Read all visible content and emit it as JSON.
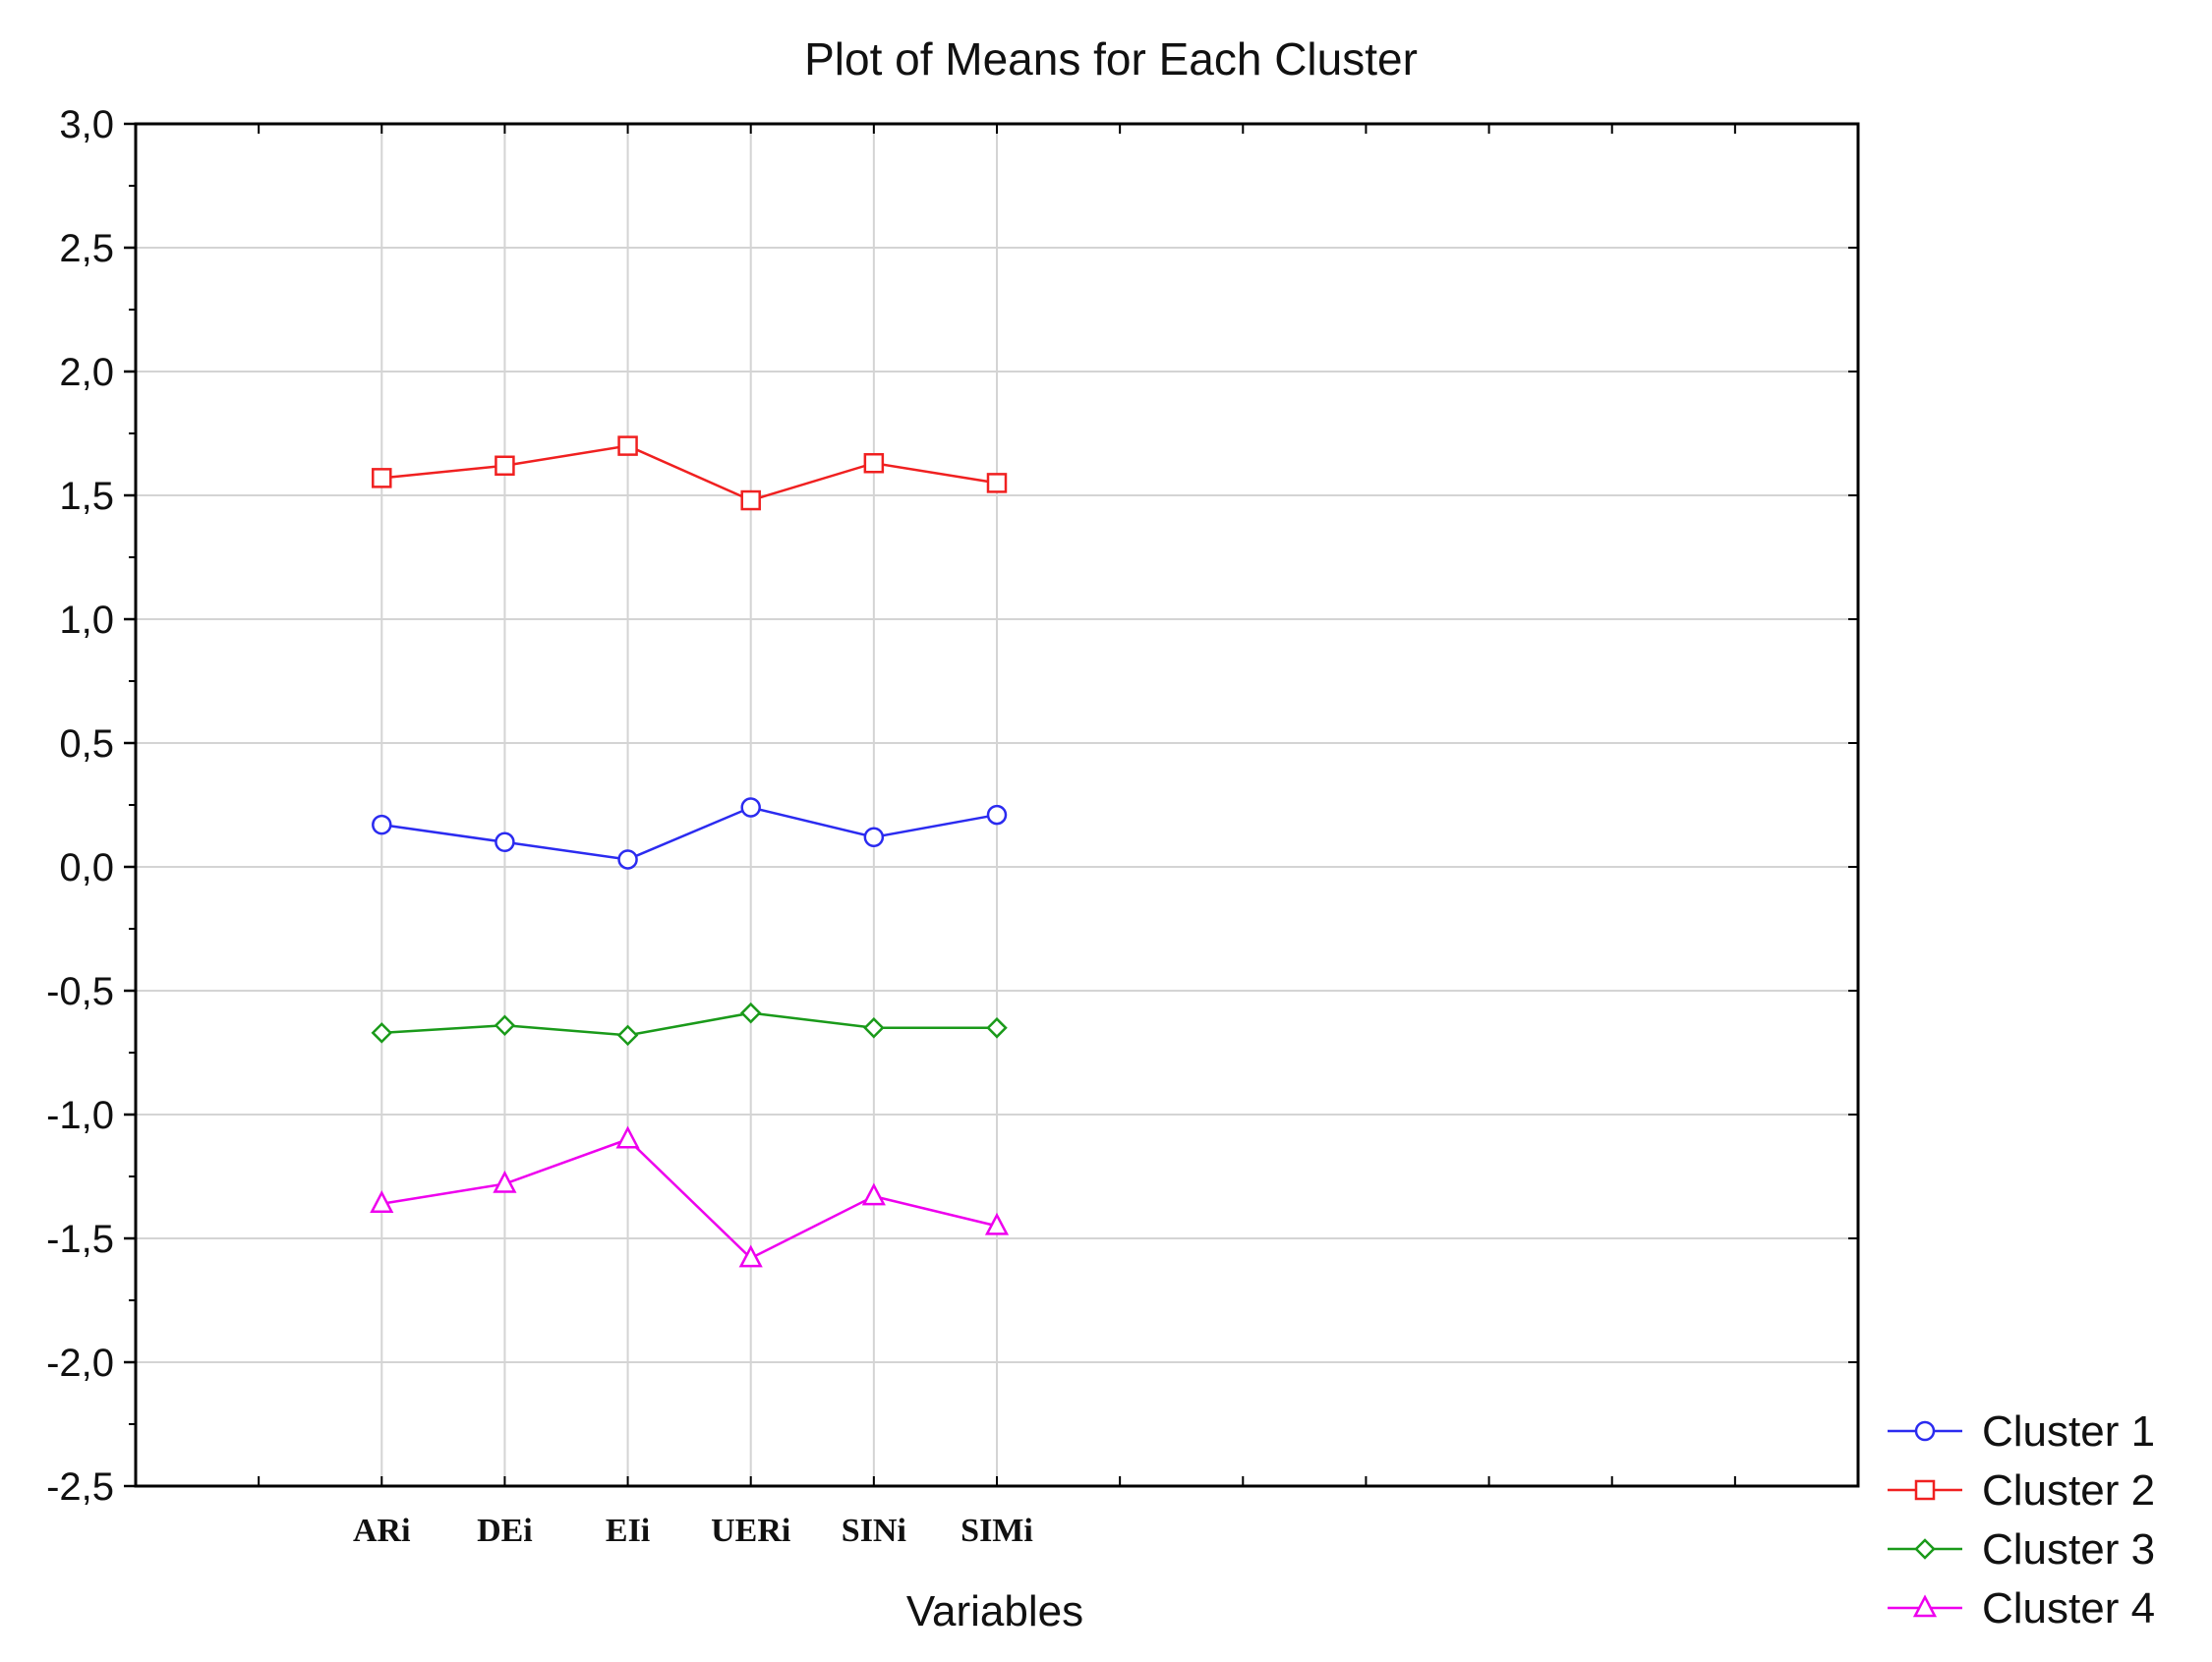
{
  "chart_data": {
    "type": "line",
    "title": "Plot of Means for Each Cluster",
    "xlabel": "Variables",
    "ylabel": "",
    "categories": [
      "ARi",
      "DEi",
      "EIi",
      "UERi",
      "SINi",
      "SIMi"
    ],
    "ylim": [
      -2.5,
      3.0
    ],
    "yticks": [
      "3,0",
      "2,5",
      "2,0",
      "1,5",
      "1,0",
      "0,5",
      "0,0",
      "-0,5",
      "-1,0",
      "-1,5",
      "-2,0",
      "-2,5"
    ],
    "ytick_values": [
      3.0,
      2.5,
      2.0,
      1.5,
      1.0,
      0.5,
      0.0,
      -0.5,
      -1.0,
      -1.5,
      -2.0,
      -2.5
    ],
    "grid": true,
    "legend_position": "bottom-right",
    "series": [
      {
        "name": "Cluster  1",
        "color": "#2b2bf0",
        "marker": "circle",
        "values": [
          0.17,
          0.1,
          0.03,
          0.24,
          0.12,
          0.21
        ]
      },
      {
        "name": "Cluster  2",
        "color": "#f02020",
        "marker": "square",
        "values": [
          1.57,
          1.62,
          1.7,
          1.48,
          1.63,
          1.55
        ]
      },
      {
        "name": "Cluster  3",
        "color": "#1a9a1a",
        "marker": "diamond",
        "values": [
          -0.67,
          -0.64,
          -0.68,
          -0.59,
          -0.65,
          -0.65
        ]
      },
      {
        "name": "Cluster  4",
        "color": "#ee00ee",
        "marker": "triangle",
        "values": [
          -1.36,
          -1.28,
          -1.1,
          -1.58,
          -1.33,
          -1.45
        ]
      }
    ]
  }
}
